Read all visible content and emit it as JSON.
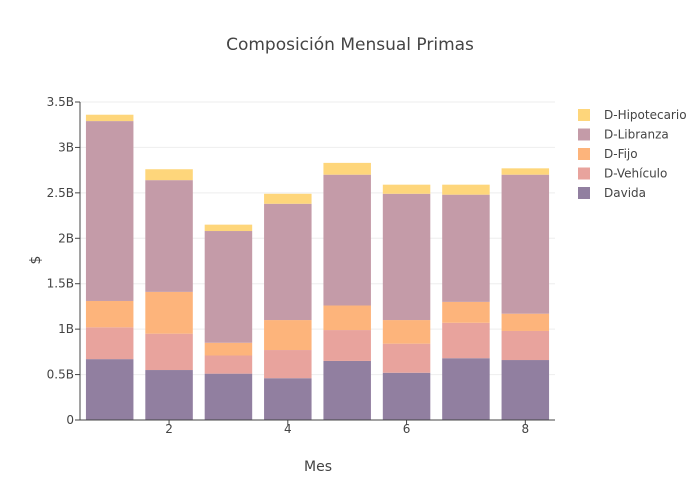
{
  "chart_data": {
    "type": "bar",
    "stacked": true,
    "title": "Composición Mensual Primas",
    "xlabel": "Mes",
    "ylabel": "$",
    "x": [
      1,
      2,
      3,
      4,
      5,
      6,
      7,
      8
    ],
    "x_ticks": [
      2,
      4,
      6,
      8
    ],
    "x_tick_labels": [
      "2",
      "4",
      "6",
      "8"
    ],
    "xlim": [
      0.5,
      8.5
    ],
    "y_ticks": [
      0,
      0.5,
      1,
      1.5,
      2,
      2.5,
      3,
      3.5
    ],
    "y_tick_labels": [
      "0",
      "0.5B",
      "1B",
      "1.5B",
      "2B",
      "2.5B",
      "3B",
      "3.5B"
    ],
    "ylim": [
      0,
      3.5
    ],
    "y_unit": "B",
    "grid": true,
    "legend_position": "top-right",
    "series": [
      {
        "name": "Davida",
        "color": "#917fa0",
        "values": [
          0.67,
          0.55,
          0.51,
          0.46,
          0.65,
          0.52,
          0.68,
          0.66
        ]
      },
      {
        "name": "D-Vehículo",
        "color": "#e8a39d",
        "values": [
          0.35,
          0.4,
          0.2,
          0.31,
          0.34,
          0.32,
          0.39,
          0.32
        ]
      },
      {
        "name": "D-Fijo",
        "color": "#fdb47b",
        "values": [
          0.29,
          0.46,
          0.14,
          0.33,
          0.27,
          0.26,
          0.23,
          0.19
        ]
      },
      {
        "name": "D-Libranza",
        "color": "#c49ba8",
        "values": [
          1.98,
          1.23,
          1.23,
          1.28,
          1.44,
          1.39,
          1.18,
          1.53
        ]
      },
      {
        "name": "D-Hipotecario",
        "color": "#fed67b",
        "values": [
          0.07,
          0.12,
          0.07,
          0.11,
          0.13,
          0.1,
          0.11,
          0.07
        ]
      }
    ],
    "legend_order": [
      "D-Hipotecario",
      "D-Libranza",
      "D-Fijo",
      "D-Vehículo",
      "Davida"
    ]
  }
}
